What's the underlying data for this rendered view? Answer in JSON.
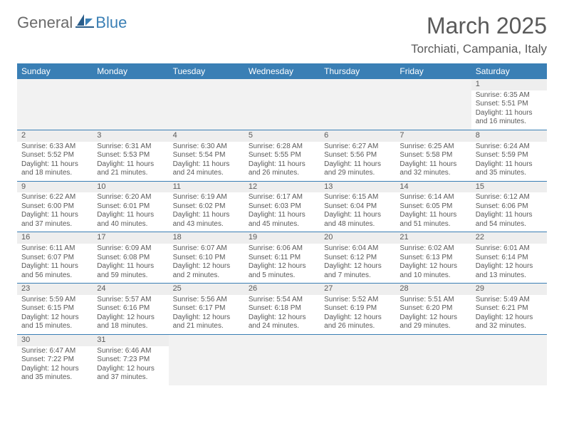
{
  "logo": {
    "text1": "General",
    "text2": "Blue"
  },
  "title": "March 2025",
  "location": "Torchiati, Campania, Italy",
  "colors": {
    "header_bg": "#3a7fb5",
    "header_text": "#ffffff",
    "border": "#3a7fb5",
    "text": "#5a5a5a",
    "light_bg": "#f2f2f2",
    "daynum_bg": "#eeeeee"
  },
  "weekdays": [
    "Sunday",
    "Monday",
    "Tuesday",
    "Wednesday",
    "Thursday",
    "Friday",
    "Saturday"
  ],
  "weeks": [
    [
      {
        "empty": true
      },
      {
        "empty": true
      },
      {
        "empty": true
      },
      {
        "empty": true
      },
      {
        "empty": true
      },
      {
        "empty": true
      },
      {
        "num": "1",
        "sunrise": "Sunrise: 6:35 AM",
        "sunset": "Sunset: 5:51 PM",
        "daylight1": "Daylight: 11 hours",
        "daylight2": "and 16 minutes."
      }
    ],
    [
      {
        "num": "2",
        "sunrise": "Sunrise: 6:33 AM",
        "sunset": "Sunset: 5:52 PM",
        "daylight1": "Daylight: 11 hours",
        "daylight2": "and 18 minutes."
      },
      {
        "num": "3",
        "sunrise": "Sunrise: 6:31 AM",
        "sunset": "Sunset: 5:53 PM",
        "daylight1": "Daylight: 11 hours",
        "daylight2": "and 21 minutes."
      },
      {
        "num": "4",
        "sunrise": "Sunrise: 6:30 AM",
        "sunset": "Sunset: 5:54 PM",
        "daylight1": "Daylight: 11 hours",
        "daylight2": "and 24 minutes."
      },
      {
        "num": "5",
        "sunrise": "Sunrise: 6:28 AM",
        "sunset": "Sunset: 5:55 PM",
        "daylight1": "Daylight: 11 hours",
        "daylight2": "and 26 minutes."
      },
      {
        "num": "6",
        "sunrise": "Sunrise: 6:27 AM",
        "sunset": "Sunset: 5:56 PM",
        "daylight1": "Daylight: 11 hours",
        "daylight2": "and 29 minutes."
      },
      {
        "num": "7",
        "sunrise": "Sunrise: 6:25 AM",
        "sunset": "Sunset: 5:58 PM",
        "daylight1": "Daylight: 11 hours",
        "daylight2": "and 32 minutes."
      },
      {
        "num": "8",
        "sunrise": "Sunrise: 6:24 AM",
        "sunset": "Sunset: 5:59 PM",
        "daylight1": "Daylight: 11 hours",
        "daylight2": "and 35 minutes."
      }
    ],
    [
      {
        "num": "9",
        "sunrise": "Sunrise: 6:22 AM",
        "sunset": "Sunset: 6:00 PM",
        "daylight1": "Daylight: 11 hours",
        "daylight2": "and 37 minutes."
      },
      {
        "num": "10",
        "sunrise": "Sunrise: 6:20 AM",
        "sunset": "Sunset: 6:01 PM",
        "daylight1": "Daylight: 11 hours",
        "daylight2": "and 40 minutes."
      },
      {
        "num": "11",
        "sunrise": "Sunrise: 6:19 AM",
        "sunset": "Sunset: 6:02 PM",
        "daylight1": "Daylight: 11 hours",
        "daylight2": "and 43 minutes."
      },
      {
        "num": "12",
        "sunrise": "Sunrise: 6:17 AM",
        "sunset": "Sunset: 6:03 PM",
        "daylight1": "Daylight: 11 hours",
        "daylight2": "and 45 minutes."
      },
      {
        "num": "13",
        "sunrise": "Sunrise: 6:15 AM",
        "sunset": "Sunset: 6:04 PM",
        "daylight1": "Daylight: 11 hours",
        "daylight2": "and 48 minutes."
      },
      {
        "num": "14",
        "sunrise": "Sunrise: 6:14 AM",
        "sunset": "Sunset: 6:05 PM",
        "daylight1": "Daylight: 11 hours",
        "daylight2": "and 51 minutes."
      },
      {
        "num": "15",
        "sunrise": "Sunrise: 6:12 AM",
        "sunset": "Sunset: 6:06 PM",
        "daylight1": "Daylight: 11 hours",
        "daylight2": "and 54 minutes."
      }
    ],
    [
      {
        "num": "16",
        "sunrise": "Sunrise: 6:11 AM",
        "sunset": "Sunset: 6:07 PM",
        "daylight1": "Daylight: 11 hours",
        "daylight2": "and 56 minutes."
      },
      {
        "num": "17",
        "sunrise": "Sunrise: 6:09 AM",
        "sunset": "Sunset: 6:08 PM",
        "daylight1": "Daylight: 11 hours",
        "daylight2": "and 59 minutes."
      },
      {
        "num": "18",
        "sunrise": "Sunrise: 6:07 AM",
        "sunset": "Sunset: 6:10 PM",
        "daylight1": "Daylight: 12 hours",
        "daylight2": "and 2 minutes."
      },
      {
        "num": "19",
        "sunrise": "Sunrise: 6:06 AM",
        "sunset": "Sunset: 6:11 PM",
        "daylight1": "Daylight: 12 hours",
        "daylight2": "and 5 minutes."
      },
      {
        "num": "20",
        "sunrise": "Sunrise: 6:04 AM",
        "sunset": "Sunset: 6:12 PM",
        "daylight1": "Daylight: 12 hours",
        "daylight2": "and 7 minutes."
      },
      {
        "num": "21",
        "sunrise": "Sunrise: 6:02 AM",
        "sunset": "Sunset: 6:13 PM",
        "daylight1": "Daylight: 12 hours",
        "daylight2": "and 10 minutes."
      },
      {
        "num": "22",
        "sunrise": "Sunrise: 6:01 AM",
        "sunset": "Sunset: 6:14 PM",
        "daylight1": "Daylight: 12 hours",
        "daylight2": "and 13 minutes."
      }
    ],
    [
      {
        "num": "23",
        "sunrise": "Sunrise: 5:59 AM",
        "sunset": "Sunset: 6:15 PM",
        "daylight1": "Daylight: 12 hours",
        "daylight2": "and 15 minutes."
      },
      {
        "num": "24",
        "sunrise": "Sunrise: 5:57 AM",
        "sunset": "Sunset: 6:16 PM",
        "daylight1": "Daylight: 12 hours",
        "daylight2": "and 18 minutes."
      },
      {
        "num": "25",
        "sunrise": "Sunrise: 5:56 AM",
        "sunset": "Sunset: 6:17 PM",
        "daylight1": "Daylight: 12 hours",
        "daylight2": "and 21 minutes."
      },
      {
        "num": "26",
        "sunrise": "Sunrise: 5:54 AM",
        "sunset": "Sunset: 6:18 PM",
        "daylight1": "Daylight: 12 hours",
        "daylight2": "and 24 minutes."
      },
      {
        "num": "27",
        "sunrise": "Sunrise: 5:52 AM",
        "sunset": "Sunset: 6:19 PM",
        "daylight1": "Daylight: 12 hours",
        "daylight2": "and 26 minutes."
      },
      {
        "num": "28",
        "sunrise": "Sunrise: 5:51 AM",
        "sunset": "Sunset: 6:20 PM",
        "daylight1": "Daylight: 12 hours",
        "daylight2": "and 29 minutes."
      },
      {
        "num": "29",
        "sunrise": "Sunrise: 5:49 AM",
        "sunset": "Sunset: 6:21 PM",
        "daylight1": "Daylight: 12 hours",
        "daylight2": "and 32 minutes."
      }
    ],
    [
      {
        "num": "30",
        "sunrise": "Sunrise: 6:47 AM",
        "sunset": "Sunset: 7:22 PM",
        "daylight1": "Daylight: 12 hours",
        "daylight2": "and 35 minutes."
      },
      {
        "num": "31",
        "sunrise": "Sunrise: 6:46 AM",
        "sunset": "Sunset: 7:23 PM",
        "daylight1": "Daylight: 12 hours",
        "daylight2": "and 37 minutes."
      },
      {
        "empty": true
      },
      {
        "empty": true
      },
      {
        "empty": true
      },
      {
        "empty": true
      },
      {
        "empty": true
      }
    ]
  ]
}
